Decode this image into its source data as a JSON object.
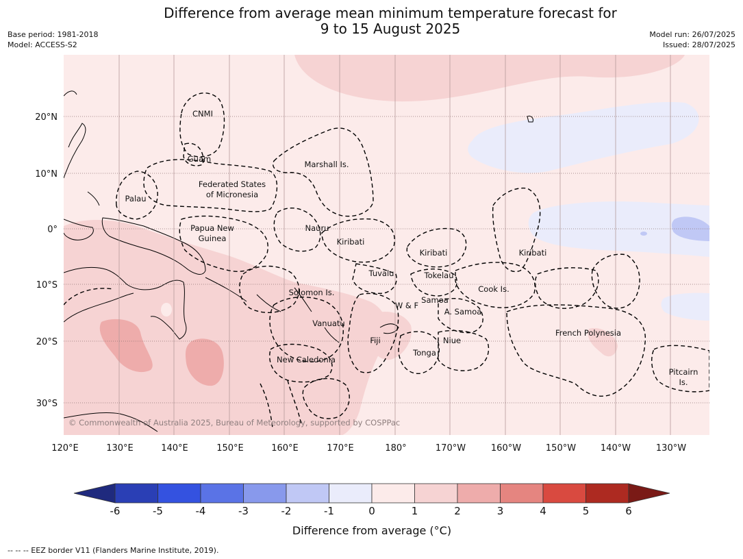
{
  "title": {
    "line1": "Difference from average mean minimum temperature forecast for",
    "line2": "9 to 15 August 2025"
  },
  "meta_left": {
    "base_period": "Base period: 1981-2018",
    "model": "Model: ACCESS-S2"
  },
  "meta_right": {
    "model_run": "Model run: 26/07/2025",
    "issued": "Issued: 28/07/2025"
  },
  "map": {
    "lon_labels": [
      "120°E",
      "130°E",
      "140°E",
      "150°E",
      "160°E",
      "170°E",
      "180°",
      "170°W",
      "160°W",
      "150°W",
      "140°W",
      "130°W"
    ],
    "lat_labels": [
      "20°N",
      "10°N",
      "0°",
      "10°S",
      "20°S",
      "30°S"
    ],
    "copyright": "© Commonwealth of Australia 2025, Bureau of Meteorology, supported by COSPPac",
    "regions": [
      {
        "name": "cnmi",
        "label": "CNMI"
      },
      {
        "name": "guam",
        "label": "Guam"
      },
      {
        "name": "marshall",
        "label": "Marshall Is."
      },
      {
        "name": "fsm1",
        "label": "Federated States"
      },
      {
        "name": "fsm2",
        "label": "of Micronesia"
      },
      {
        "name": "palau",
        "label": "Palau"
      },
      {
        "name": "png1",
        "label": "Papua New"
      },
      {
        "name": "png2",
        "label": "Guinea"
      },
      {
        "name": "nauru",
        "label": "Nauru"
      },
      {
        "name": "kiribati-w",
        "label": "Kiribati"
      },
      {
        "name": "kiribati-c",
        "label": "Kiribati"
      },
      {
        "name": "kiribati-e",
        "label": "Kiribati"
      },
      {
        "name": "tuvalu",
        "label": "Tuvalu"
      },
      {
        "name": "tokelau",
        "label": "Tokelau"
      },
      {
        "name": "cook",
        "label": "Cook Is."
      },
      {
        "name": "solomon",
        "label": "Solomon Is."
      },
      {
        "name": "samoa",
        "label": "Samoa"
      },
      {
        "name": "wf",
        "label": "W & F"
      },
      {
        "name": "asamoa",
        "label": "A. Samoa"
      },
      {
        "name": "vanuatu",
        "label": "Vanuatu"
      },
      {
        "name": "fiji",
        "label": "Fiji"
      },
      {
        "name": "niue",
        "label": "Niue"
      },
      {
        "name": "tonga",
        "label": "Tonga"
      },
      {
        "name": "newcal",
        "label": "New Caledonia"
      },
      {
        "name": "frpoly",
        "label": "French Polynesia"
      },
      {
        "name": "pitcairn1",
        "label": "Pitcairn"
      },
      {
        "name": "pitcairn2",
        "label": "Is."
      }
    ]
  },
  "colorbar": {
    "ticks": [
      "-6",
      "-5",
      "-4",
      "-3",
      "-2",
      "-1",
      "0",
      "1",
      "2",
      "3",
      "4",
      "5",
      "6"
    ],
    "colors": [
      "#1f2a7e",
      "#2a3fb5",
      "#3452e0",
      "#5a73e6",
      "#8899ec",
      "#c0c8f5",
      "#eaecfb",
      "#fcebea",
      "#f6d3d3",
      "#eeacab",
      "#e58580",
      "#d94a40",
      "#ad2a21",
      "#7a1a16"
    ],
    "label": "Difference from average (°C)"
  },
  "footer": "--  --  -- EEZ border V11 (Flanders Marine Institute, 2019)."
}
